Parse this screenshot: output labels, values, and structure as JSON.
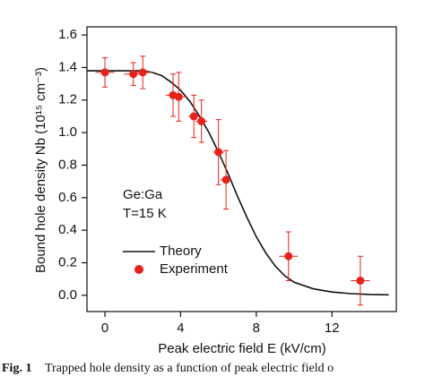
{
  "chart_data": {
    "type": "scatter",
    "xlabel": "Peak electric field E (kV/cm)",
    "ylabel": "Bound hole density Nb (10¹⁵ cm⁻³)",
    "annotations": [
      "Ge:Ga",
      "T=15 K"
    ],
    "caption_label": "Fig. 1",
    "caption": "Trapped hole density as a function of peak electric field o",
    "xlim": [
      -0.95,
      15.4
    ],
    "ylim": [
      -0.1,
      1.65
    ],
    "xticks": [
      0,
      4,
      8,
      12
    ],
    "yticks": [
      {
        "value": 0,
        "label": "0.0"
      },
      {
        "value": 0.2,
        "label": "0.2"
      },
      {
        "value": 0.4,
        "label": "0.4"
      },
      {
        "value": 0.6,
        "label": "0.6"
      },
      {
        "value": 0.8,
        "label": "0.8"
      },
      {
        "value": 1.0,
        "label": "1.0"
      },
      {
        "value": 1.2,
        "label": "1.2"
      },
      {
        "value": 1.4,
        "label": "1.4"
      },
      {
        "value": 1.6,
        "label": "1.6"
      }
    ],
    "series": [
      {
        "name": "Theory",
        "style": "line",
        "color": "#111111",
        "x": [
          -0.95,
          0,
          1,
          2,
          2.5,
          3,
          3.5,
          4,
          4.5,
          5,
          5.5,
          6,
          6.5,
          7,
          7.5,
          8,
          8.5,
          9,
          9.5,
          10,
          11,
          12,
          13,
          14,
          15
        ],
        "values": [
          1.38,
          1.38,
          1.38,
          1.38,
          1.37,
          1.35,
          1.31,
          1.26,
          1.19,
          1.1,
          1.0,
          0.88,
          0.75,
          0.61,
          0.48,
          0.36,
          0.26,
          0.18,
          0.12,
          0.08,
          0.04,
          0.02,
          0.01,
          0.005,
          0.003
        ]
      },
      {
        "name": "Experiment",
        "style": "markers",
        "color": "#e8221b",
        "x": [
          0,
          1.5,
          2,
          3.6,
          3.9,
          4.7,
          5.1,
          6.0,
          6.4,
          9.7,
          13.5
        ],
        "values": [
          1.37,
          1.36,
          1.37,
          1.23,
          1.22,
          1.1,
          1.07,
          0.88,
          0.71,
          0.24,
          0.09
        ],
        "xerr": [
          0.5,
          0.5,
          0.5,
          0.4,
          0.4,
          0.3,
          0.3,
          0.3,
          0.3,
          0.5,
          0.5
        ],
        "yerr": [
          0.09,
          0.07,
          0.1,
          0.13,
          0.15,
          0.13,
          0.13,
          0.2,
          0.18,
          0.15,
          0.15
        ]
      }
    ]
  }
}
